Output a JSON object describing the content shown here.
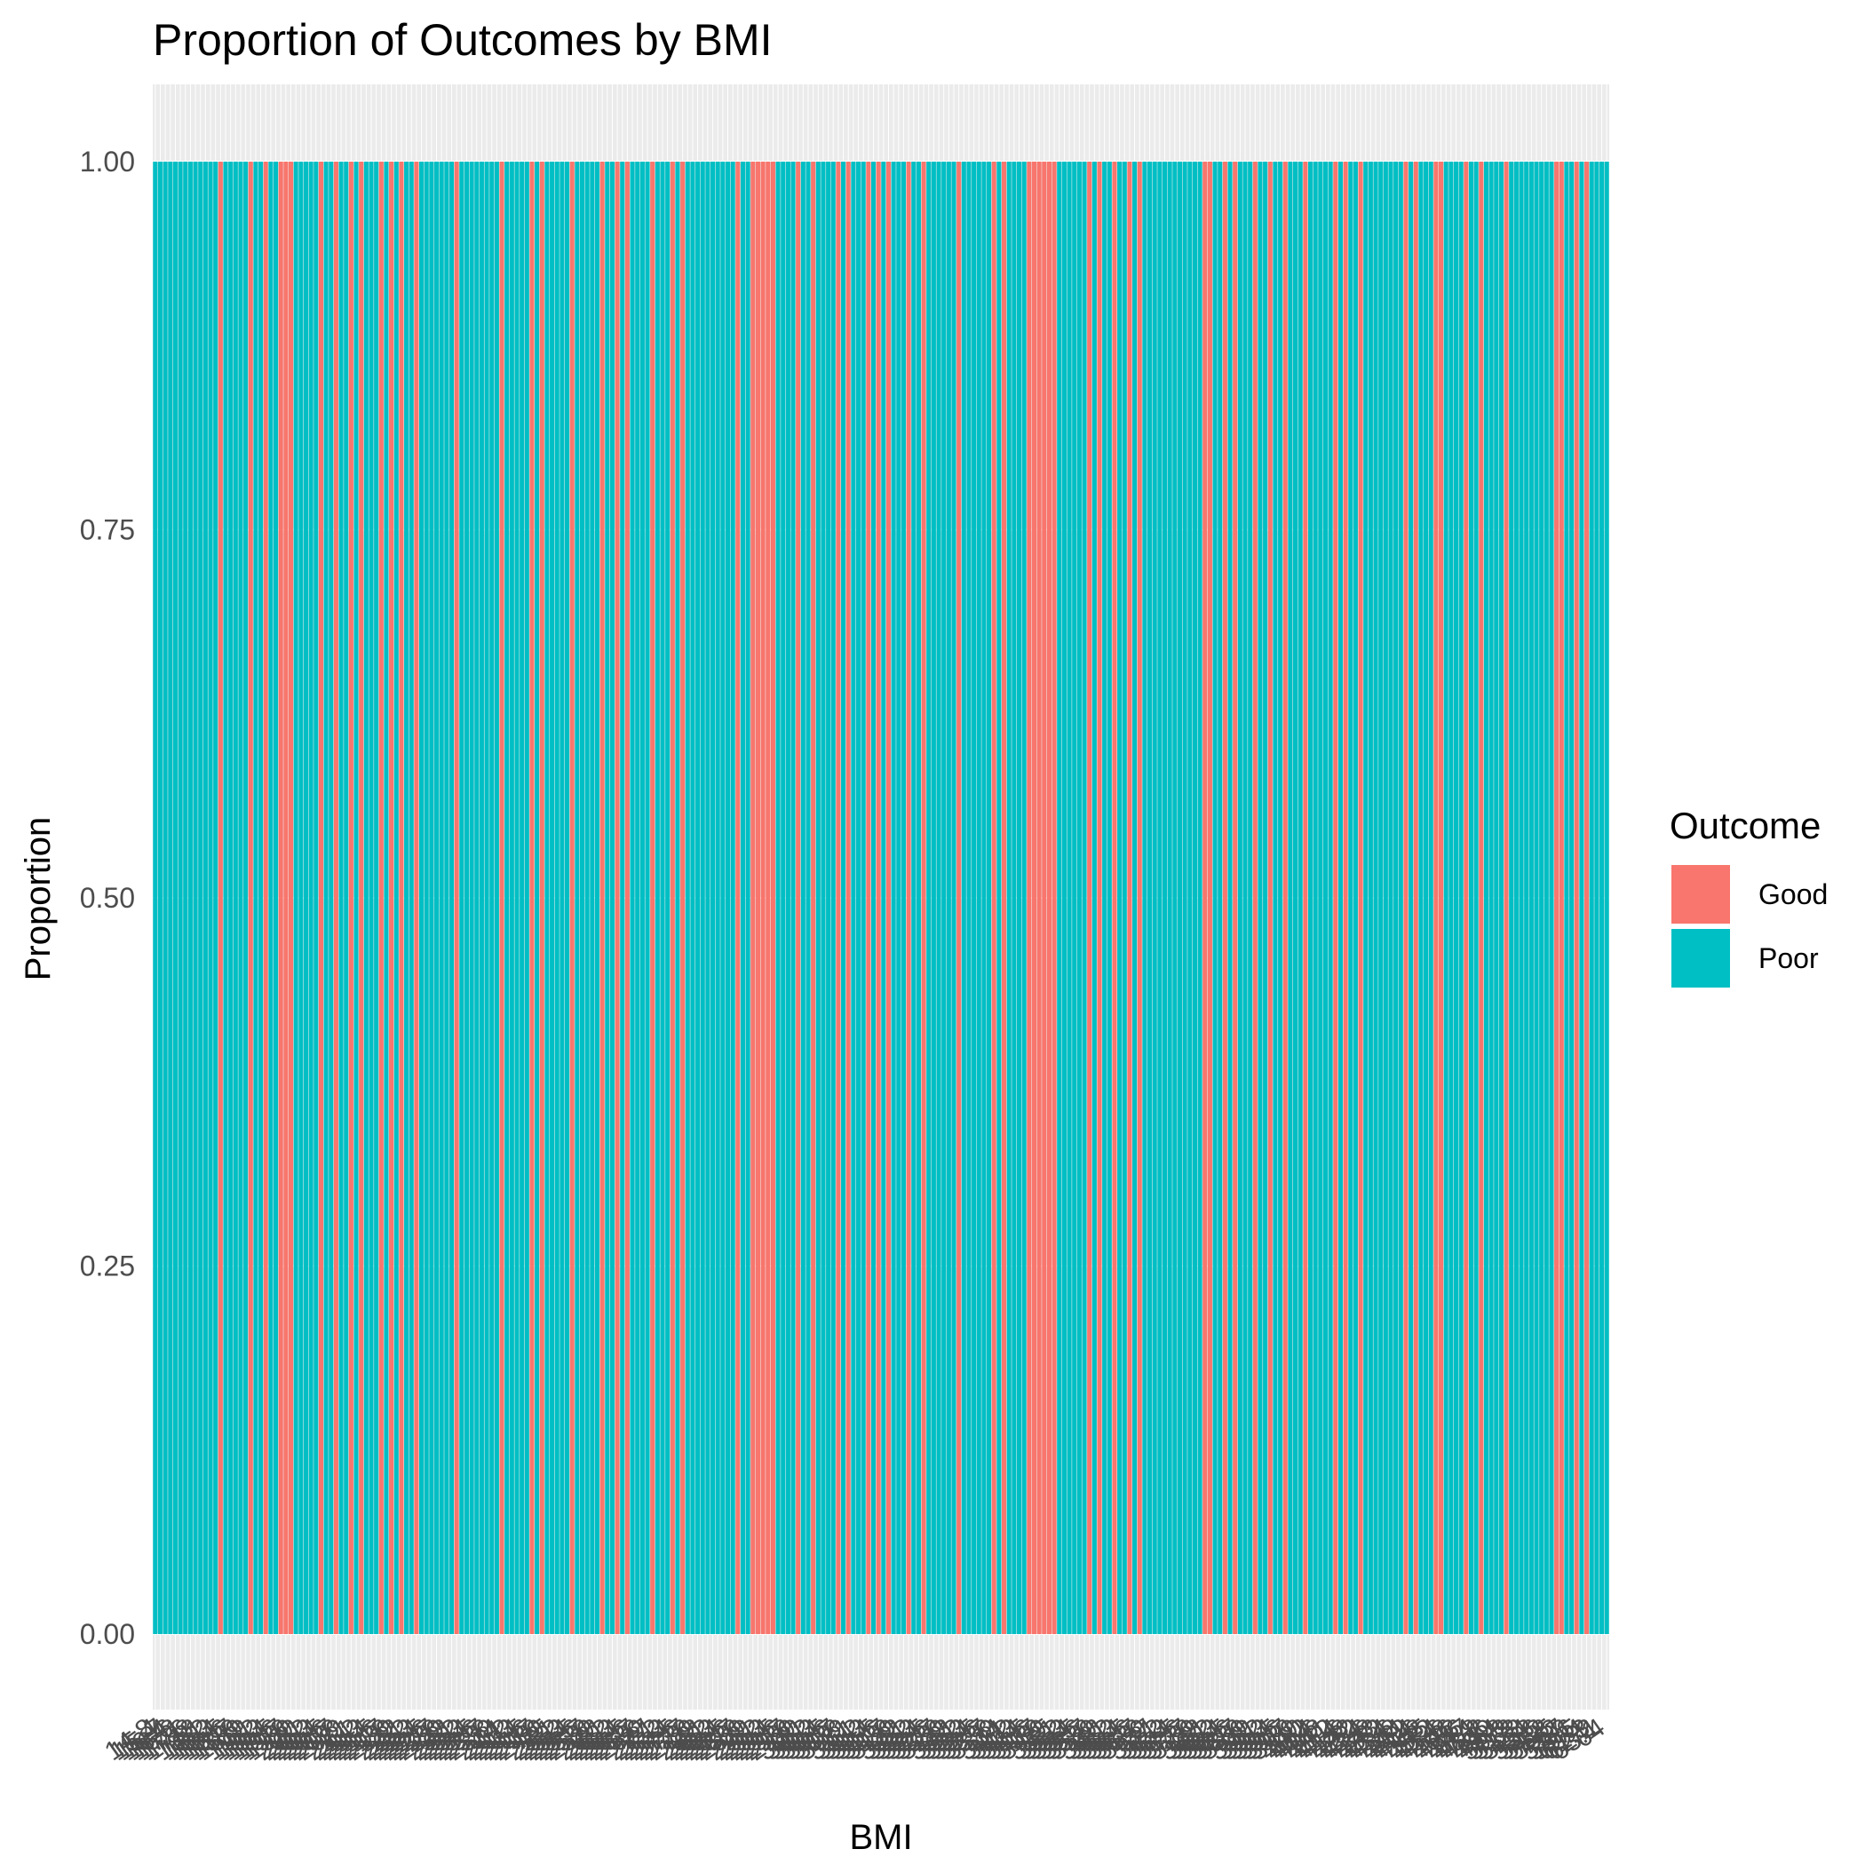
{
  "chart_data": {
    "type": "bar",
    "stacked": true,
    "title": "Proportion of Outcomes by BMI",
    "xlabel": "BMI",
    "ylabel": "Proportion",
    "ylim": [
      0,
      1
    ],
    "yticks": [
      "0.00",
      "0.25",
      "0.50",
      "0.75",
      "1.00"
    ],
    "grid": true,
    "legend": {
      "title": "Outcome",
      "position": "right",
      "entries": [
        {
          "name": "Good",
          "color": "#F8766D"
        },
        {
          "name": "Poor",
          "color": "#00BFC4"
        }
      ]
    },
    "categories": [
      "14.8",
      "15.4",
      "15.7",
      "16.4",
      "16.6",
      "16.8",
      "17.1",
      "17.6",
      "17.8",
      "18",
      "18.1",
      "18.2",
      "18.3",
      "18.4",
      "18.5",
      "18.6",
      "18.7",
      "18.8",
      "18.9",
      "19",
      "19.1",
      "19.2",
      "19.3",
      "19.4",
      "19.5",
      "19.6",
      "19.7",
      "19.8",
      "19.9",
      "20",
      "20.1",
      "20.2",
      "20.3",
      "20.4",
      "20.5",
      "20.6",
      "20.7",
      "20.8",
      "20.9",
      "21",
      "21.1",
      "21.2",
      "21.3",
      "21.4",
      "21.5",
      "21.6",
      "21.7",
      "21.8",
      "21.9",
      "22",
      "22.1",
      "22.2",
      "22.3",
      "22.4",
      "22.5",
      "22.6",
      "22.7",
      "22.8",
      "22.9",
      "23",
      "23.1",
      "23.2",
      "23.3",
      "23.4",
      "23.5",
      "23.6",
      "23.7",
      "23.8",
      "23.9",
      "24",
      "24.1",
      "24.2",
      "24.3",
      "24.4",
      "24.5",
      "24.6",
      "24.7",
      "24.8",
      "24.9",
      "25",
      "25.1",
      "25.2",
      "25.3",
      "25.4",
      "25.5",
      "25.6",
      "25.7",
      "25.8",
      "25.9",
      "26",
      "26.1",
      "26.2",
      "26.3",
      "26.4",
      "26.5",
      "26.6",
      "26.7",
      "26.8",
      "26.9",
      "27",
      "27.1",
      "27.2",
      "27.3",
      "27.4",
      "27.5",
      "27.6",
      "27.7",
      "27.8",
      "27.9",
      "28",
      "28.1",
      "28.2",
      "28.3",
      "28.4",
      "28.5",
      "28.6",
      "28.7",
      "28.8",
      "28.9",
      "29",
      "29.1",
      "29.2",
      "29.3",
      "29.4",
      "29.5",
      "29.6",
      "29.7",
      "29.8",
      "29.9",
      "30",
      "30.1",
      "30.2",
      "30.3",
      "30.4",
      "30.5",
      "30.6",
      "30.7",
      "30.8",
      "30.9",
      "31",
      "31.1",
      "31.2",
      "31.3",
      "31.4",
      "31.5",
      "31.6",
      "31.7",
      "31.8",
      "31.9",
      "32",
      "32.1",
      "32.2",
      "32.3",
      "32.4",
      "32.5",
      "32.6",
      "32.7",
      "32.8",
      "32.9",
      "33",
      "33.1",
      "33.2",
      "33.3",
      "33.4",
      "33.5",
      "33.6",
      "33.7",
      "33.8",
      "33.9",
      "34",
      "34.1",
      "34.2",
      "34.3",
      "34.4",
      "34.5",
      "34.6",
      "34.7",
      "34.8",
      "34.9",
      "35",
      "35.1",
      "35.2",
      "35.3",
      "35.4",
      "35.5",
      "35.6",
      "35.7",
      "35.8",
      "35.9",
      "36",
      "36.1",
      "36.2",
      "36.3",
      "36.4",
      "36.5",
      "36.6",
      "36.7",
      "36.8",
      "36.9",
      "37",
      "37.1",
      "37.2",
      "37.3",
      "37.4",
      "37.5",
      "37.6",
      "37.7",
      "37.8",
      "37.9",
      "38",
      "38.1",
      "38.2",
      "38.3",
      "38.4",
      "38.5",
      "38.6",
      "38.7",
      "38.8",
      "38.9",
      "39",
      "39.1",
      "39.2",
      "39.3",
      "39.4",
      "39.5",
      "39.6",
      "39.7",
      "39.8",
      "39.9",
      "40",
      "40.2",
      "40.4",
      "40.6",
      "40.8",
      "41",
      "41.2",
      "41.4",
      "41.6",
      "41.8",
      "42",
      "42.2",
      "42.4",
      "42.6",
      "42.8",
      "43",
      "43.2",
      "43.4",
      "43.6",
      "43.8",
      "44",
      "44.2",
      "44.4",
      "44.6",
      "44.8",
      "45",
      "45.2",
      "45.4",
      "45.6",
      "45.8",
      "46",
      "46.3",
      "46.6",
      "47",
      "47.4",
      "47.8",
      "48.2",
      "48.6",
      "49",
      "49.4",
      "49.8",
      "50.3",
      "50.8",
      "51.3",
      "51.8",
      "52.4",
      "53",
      "53.6",
      "54.2",
      "54.8",
      "55.5",
      "56.2",
      "57",
      "57.8",
      "58.6",
      "59.5",
      "60.4",
      "61.3",
      "62.2",
      "63.1",
      "64"
    ],
    "series": [
      {
        "name": "Good",
        "values": [
          0,
          0,
          0,
          0,
          0,
          0,
          0,
          0,
          0,
          0,
          0,
          0,
          0,
          1,
          0,
          0,
          0,
          0,
          0,
          1,
          0,
          0,
          1,
          0,
          0,
          1,
          1,
          1,
          0,
          0,
          0,
          0,
          0,
          1,
          0,
          0,
          1,
          0,
          0,
          1,
          0,
          1,
          0,
          0,
          0,
          1,
          0,
          1,
          0,
          1,
          0,
          0,
          1,
          0,
          0,
          0,
          0,
          0,
          0,
          0,
          1,
          0,
          0,
          0,
          0,
          0,
          0,
          0,
          0,
          1,
          0,
          0,
          0,
          0,
          0,
          1,
          0,
          1,
          0,
          0,
          0,
          0,
          0,
          1,
          0,
          0,
          0,
          0,
          0,
          1,
          0,
          0,
          1,
          0,
          1,
          0,
          0,
          0,
          0,
          1,
          0,
          0,
          0,
          1,
          0,
          1,
          0,
          0,
          0,
          0,
          0,
          0,
          0,
          0,
          0,
          0,
          1,
          0,
          0,
          1,
          1,
          1,
          1,
          1,
          0,
          0,
          0,
          0,
          1,
          0,
          0,
          1,
          0,
          0,
          0,
          0,
          1,
          0,
          1,
          0,
          0,
          0,
          1,
          0,
          1,
          0,
          1,
          0,
          0,
          0,
          1,
          0,
          0,
          1,
          0,
          0,
          0,
          0,
          0,
          0,
          1,
          0,
          0,
          0,
          0,
          0,
          0,
          1,
          0,
          1,
          0,
          0,
          0,
          0,
          1,
          1,
          1,
          1,
          1,
          1,
          0,
          0,
          0,
          0,
          0,
          0,
          1,
          0,
          1,
          0,
          0,
          1,
          0,
          0,
          1,
          0,
          1,
          0,
          0,
          0,
          0,
          0,
          0,
          0,
          0,
          0,
          0,
          0,
          0,
          1,
          1,
          0,
          0,
          1,
          0,
          1,
          0,
          0,
          0,
          1,
          0,
          0,
          1,
          0,
          0,
          1,
          0,
          0,
          0,
          1,
          0,
          0,
          0,
          0,
          0,
          1,
          0,
          1,
          0,
          0,
          1,
          0,
          0,
          0,
          0,
          0,
          0,
          0,
          0,
          1,
          0,
          1,
          0,
          0,
          0,
          1,
          1,
          0,
          0,
          0,
          0,
          1,
          0,
          0,
          1,
          0,
          0,
          0,
          0,
          1,
          0,
          0,
          0,
          0,
          0,
          0,
          0,
          0,
          0,
          1,
          1,
          0,
          0,
          1,
          0,
          1,
          0,
          0,
          0,
          0
        ]
      },
      {
        "name": "Poor",
        "values": [
          1,
          1,
          1,
          1,
          1,
          1,
          1,
          1,
          1,
          1,
          1,
          1,
          1,
          0,
          1,
          1,
          1,
          1,
          1,
          0,
          1,
          1,
          0,
          1,
          1,
          0,
          0,
          0,
          1,
          1,
          1,
          1,
          1,
          0,
          1,
          1,
          0,
          1,
          1,
          0,
          1,
          0,
          1,
          1,
          1,
          0,
          1,
          0,
          1,
          0,
          1,
          1,
          0,
          1,
          1,
          1,
          1,
          1,
          1,
          1,
          0,
          1,
          1,
          1,
          1,
          1,
          1,
          1,
          1,
          0,
          1,
          1,
          1,
          1,
          1,
          0,
          1,
          0,
          1,
          1,
          1,
          1,
          1,
          0,
          1,
          1,
          1,
          1,
          1,
          0,
          1,
          1,
          0,
          1,
          0,
          1,
          1,
          1,
          1,
          0,
          1,
          1,
          1,
          0,
          1,
          0,
          1,
          1,
          1,
          1,
          1,
          1,
          1,
          1,
          1,
          1,
          0,
          1,
          1,
          0,
          0,
          0,
          0,
          0,
          1,
          1,
          1,
          1,
          0,
          1,
          1,
          0,
          1,
          1,
          1,
          1,
          0,
          1,
          0,
          1,
          1,
          1,
          0,
          1,
          0,
          1,
          0,
          1,
          1,
          1,
          0,
          1,
          1,
          0,
          1,
          1,
          1,
          1,
          1,
          1,
          0,
          1,
          1,
          1,
          1,
          1,
          1,
          0,
          1,
          0,
          1,
          1,
          1,
          1,
          0,
          0,
          0,
          0,
          0,
          0,
          1,
          1,
          1,
          1,
          1,
          1,
          0,
          1,
          0,
          1,
          1,
          0,
          1,
          1,
          0,
          1,
          0,
          1,
          1,
          1,
          1,
          1,
          1,
          1,
          1,
          1,
          1,
          1,
          1,
          0,
          0,
          1,
          1,
          0,
          1,
          0,
          1,
          1,
          1,
          0,
          1,
          1,
          0,
          1,
          1,
          0,
          1,
          1,
          1,
          0,
          1,
          1,
          1,
          1,
          1,
          0,
          1,
          0,
          1,
          1,
          0,
          1,
          1,
          1,
          1,
          1,
          1,
          1,
          1,
          0,
          1,
          0,
          1,
          1,
          1,
          0,
          0,
          1,
          1,
          1,
          1,
          0,
          1,
          1,
          0,
          1,
          1,
          1,
          1,
          0,
          1,
          1,
          1,
          1,
          1,
          1,
          1,
          1,
          1,
          0,
          0,
          1,
          1,
          0,
          1,
          0,
          1,
          1,
          1,
          1
        ]
      }
    ]
  }
}
